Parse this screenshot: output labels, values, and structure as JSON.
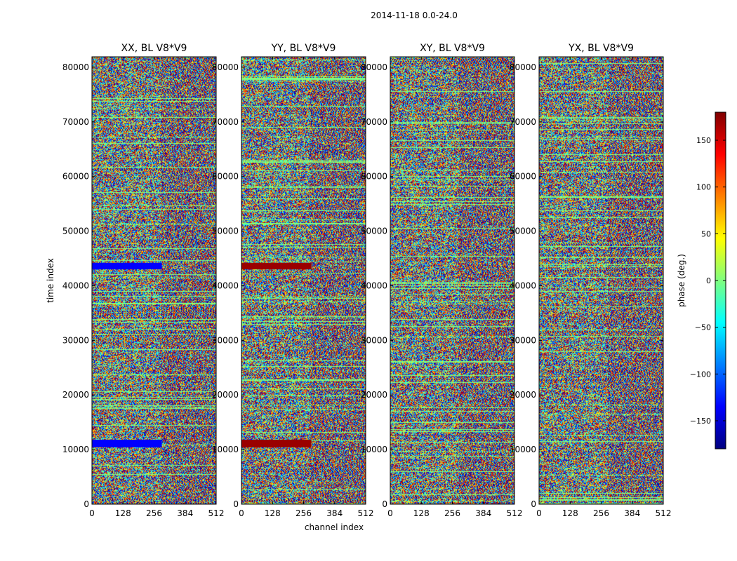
{
  "chart_data": {
    "type": "heatmap",
    "title": "2014-11-18 0.0-24.0",
    "xlabel": "channel index",
    "ylabel": "time index",
    "xlim": [
      0,
      512
    ],
    "ylim": [
      0,
      81920
    ],
    "x_ticks": [
      "0",
      "128",
      "256",
      "384",
      "512"
    ],
    "y_ticks": [
      "0",
      "10000",
      "20000",
      "30000",
      "40000",
      "50000",
      "60000",
      "70000",
      "80000"
    ],
    "colorbar": {
      "label": "phase (deg.)",
      "range": [
        -180,
        180
      ],
      "ticks": [
        "150",
        "100",
        "50",
        "0",
        "−50",
        "−100",
        "−150"
      ],
      "colormap": [
        "#00007f",
        "#0000ff",
        "#007fff",
        "#00ffff",
        "#7fff7f",
        "#ffff00",
        "#ff7f00",
        "#ff0000",
        "#7f0000"
      ]
    },
    "panels": [
      {
        "title": "XX, BL V8*V9",
        "flag_color": "#0000ff",
        "bands": [
          [
            43000,
            44200
          ],
          [
            10400,
            11800
          ]
        ]
      },
      {
        "title": "YY, BL V8*V9",
        "flag_color": "#9a0000",
        "bands": [
          [
            43000,
            44200
          ],
          [
            10400,
            11800
          ]
        ]
      },
      {
        "title": "XY, BL V8*V9",
        "flag_color": "",
        "bands": []
      },
      {
        "title": "YX, BL V8*V9",
        "flag_color": "",
        "bands": []
      }
    ],
    "flag_band_channels": [
      0,
      288
    ]
  }
}
